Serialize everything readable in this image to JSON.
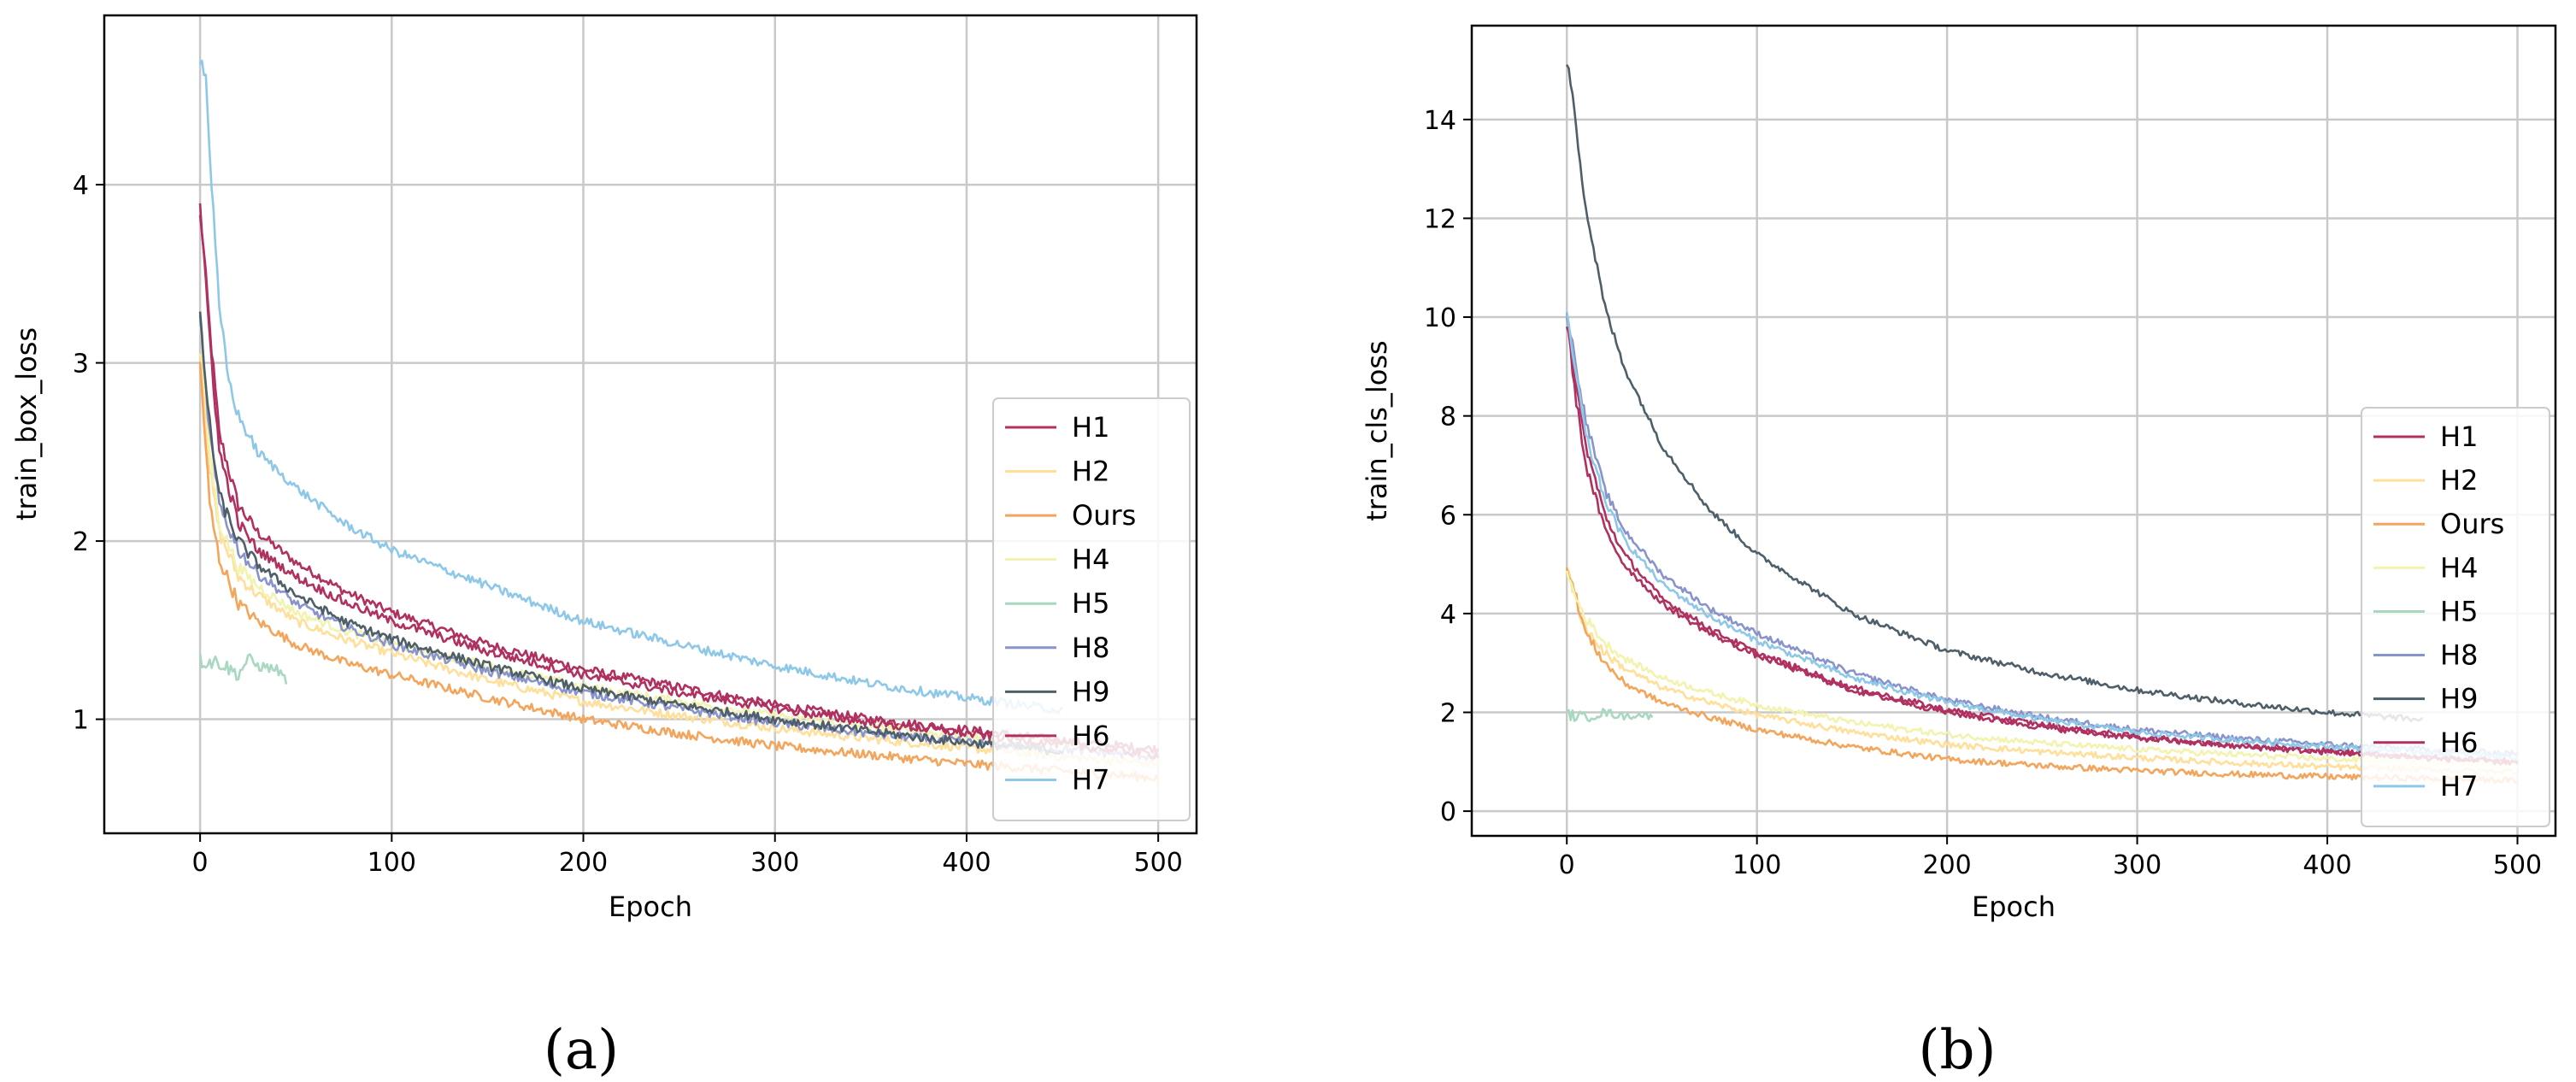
{
  "chart_data": [
    {
      "type": "line",
      "panel_label": "(a)",
      "xlabel": "Epoch",
      "ylabel": "train_box_loss",
      "xlim": [
        -50,
        520
      ],
      "ylim": [
        0.36,
        4.95
      ],
      "xticks": [
        0,
        100,
        200,
        300,
        400,
        500
      ],
      "yticks": [
        1,
        2,
        3,
        4
      ],
      "grid": true,
      "legend_position": "right",
      "series": [
        {
          "name": "H1",
          "color": "#b03060",
          "x": [
            0,
            5,
            10,
            20,
            30,
            50,
            75,
            100,
            150,
            200,
            250,
            300,
            350,
            400,
            450,
            500
          ],
          "y": [
            3.88,
            3.2,
            2.6,
            2.2,
            2.05,
            1.88,
            1.72,
            1.6,
            1.42,
            1.28,
            1.18,
            1.08,
            1.0,
            0.94,
            0.88,
            0.83
          ]
        },
        {
          "name": "H2",
          "color": "#ffdf9a",
          "x": [
            0,
            5,
            10,
            20,
            30,
            50,
            75,
            100,
            150,
            200,
            250,
            300,
            350,
            400,
            450,
            500
          ],
          "y": [
            3.1,
            2.4,
            2.05,
            1.8,
            1.7,
            1.55,
            1.45,
            1.37,
            1.22,
            1.1,
            1.02,
            0.95,
            0.89,
            0.84,
            0.79,
            0.75
          ]
        },
        {
          "name": "Ours",
          "color": "#f4a55c",
          "x": [
            0,
            5,
            10,
            20,
            30,
            50,
            75,
            100,
            150,
            200,
            250,
            300,
            350,
            400,
            450,
            500
          ],
          "y": [
            3.0,
            2.2,
            1.9,
            1.65,
            1.55,
            1.42,
            1.32,
            1.25,
            1.12,
            1.0,
            0.92,
            0.85,
            0.8,
            0.75,
            0.71,
            0.67
          ]
        },
        {
          "name": "H4",
          "color": "#f3f3b0",
          "x": [
            0,
            5,
            10,
            20,
            30,
            50,
            75,
            100,
            150,
            200,
            250,
            300,
            350,
            400,
            450,
            500
          ],
          "y": [
            3.2,
            2.5,
            2.1,
            1.85,
            1.75,
            1.6,
            1.5,
            1.42,
            1.3,
            1.18,
            1.1,
            1.02,
            0.96,
            0.9,
            0.85,
            0.8
          ]
        },
        {
          "name": "H5",
          "color": "#a8d8c0",
          "x": [
            0,
            10,
            20,
            25,
            30,
            40,
            45
          ],
          "y": [
            1.33,
            1.32,
            1.25,
            1.34,
            1.3,
            1.28,
            1.22
          ]
        },
        {
          "name": "H8",
          "color": "#8a94cc",
          "x": [
            0,
            5,
            10,
            20,
            30,
            50,
            75,
            100,
            150,
            200,
            250,
            300,
            350,
            400,
            450,
            500
          ],
          "y": [
            3.22,
            2.6,
            2.2,
            1.95,
            1.82,
            1.65,
            1.52,
            1.42,
            1.27,
            1.15,
            1.06,
            0.98,
            0.92,
            0.87,
            0.83,
            0.79
          ]
        },
        {
          "name": "H9",
          "color": "#4f5f6a",
          "x": [
            0,
            5,
            10,
            20,
            30,
            50,
            75,
            100,
            150,
            200,
            250,
            300,
            350,
            400,
            450
          ],
          "y": [
            3.24,
            2.65,
            2.25,
            2.0,
            1.87,
            1.7,
            1.55,
            1.45,
            1.3,
            1.17,
            1.08,
            1.0,
            0.93,
            0.87,
            0.82
          ]
        },
        {
          "name": "H6",
          "color": "#b03060",
          "x": [
            0,
            5,
            10,
            20,
            30,
            50,
            75,
            100,
            150,
            200,
            250,
            300,
            350,
            400,
            450,
            500
          ],
          "y": [
            3.85,
            3.15,
            2.5,
            2.1,
            1.95,
            1.8,
            1.66,
            1.55,
            1.38,
            1.25,
            1.15,
            1.06,
            0.98,
            0.92,
            0.86,
            0.8
          ]
        },
        {
          "name": "H7",
          "color": "#8ec8e8",
          "x": [
            0,
            3,
            6,
            10,
            15,
            20,
            30,
            50,
            75,
            100,
            150,
            200,
            250,
            300,
            350,
            400,
            450
          ],
          "y": [
            4.72,
            4.6,
            4.0,
            3.3,
            2.9,
            2.7,
            2.5,
            2.3,
            2.1,
            1.95,
            1.75,
            1.55,
            1.42,
            1.3,
            1.2,
            1.12,
            1.05
          ]
        }
      ]
    },
    {
      "type": "line",
      "panel_label": "(b)",
      "xlabel": "Epoch",
      "ylabel": "train_cls_loss",
      "xlim": [
        -50,
        520
      ],
      "ylim": [
        -0.5,
        15.9
      ],
      "xticks": [
        0,
        100,
        200,
        300,
        400,
        500
      ],
      "yticks": [
        0,
        2,
        4,
        6,
        8,
        10,
        12,
        14
      ],
      "grid": true,
      "legend_position": "right",
      "series": [
        {
          "name": "H1",
          "color": "#b03060",
          "x": [
            0,
            5,
            10,
            20,
            30,
            50,
            75,
            100,
            150,
            200,
            250,
            300,
            350,
            400,
            450,
            500
          ],
          "y": [
            10.0,
            8.6,
            7.4,
            6.0,
            5.2,
            4.3,
            3.7,
            3.2,
            2.5,
            2.05,
            1.75,
            1.5,
            1.35,
            1.22,
            1.1,
            1.0
          ]
        },
        {
          "name": "H2",
          "color": "#ffdf9a",
          "x": [
            0,
            5,
            10,
            20,
            30,
            50,
            75,
            100,
            150,
            200,
            250,
            300,
            350,
            400,
            450,
            500
          ],
          "y": [
            4.9,
            4.2,
            3.7,
            3.2,
            2.9,
            2.5,
            2.2,
            1.95,
            1.6,
            1.35,
            1.2,
            1.08,
            0.98,
            0.9,
            0.84,
            0.8
          ]
        },
        {
          "name": "Ours",
          "color": "#f4a55c",
          "x": [
            0,
            5,
            10,
            20,
            30,
            50,
            75,
            100,
            150,
            200,
            250,
            300,
            350,
            400,
            450,
            500
          ],
          "y": [
            5.0,
            4.3,
            3.6,
            3.0,
            2.6,
            2.2,
            1.9,
            1.65,
            1.3,
            1.05,
            0.92,
            0.82,
            0.75,
            0.7,
            0.66,
            0.62
          ]
        },
        {
          "name": "H4",
          "color": "#f3f3b0",
          "x": [
            0,
            5,
            10,
            20,
            30,
            50,
            75,
            100,
            150,
            200,
            250,
            300,
            350,
            400,
            450,
            500
          ],
          "y": [
            4.8,
            4.3,
            3.9,
            3.4,
            3.1,
            2.7,
            2.4,
            2.15,
            1.8,
            1.55,
            1.38,
            1.25,
            1.15,
            1.06,
            0.99,
            0.93
          ]
        },
        {
          "name": "H5",
          "color": "#a8d8c0",
          "x": [
            0,
            10,
            20,
            30,
            40,
            45
          ],
          "y": [
            1.95,
            1.9,
            2.0,
            1.92,
            1.95,
            1.9
          ]
        },
        {
          "name": "H8",
          "color": "#8a94cc",
          "x": [
            0,
            5,
            10,
            20,
            30,
            50,
            75,
            100,
            150,
            200,
            250,
            300,
            350,
            400,
            450,
            500
          ],
          "y": [
            10.1,
            9.0,
            7.9,
            6.5,
            5.7,
            4.8,
            4.1,
            3.6,
            2.8,
            2.25,
            1.9,
            1.65,
            1.48,
            1.35,
            1.25,
            1.16
          ]
        },
        {
          "name": "H9",
          "color": "#4f5f6a",
          "x": [
            0,
            3,
            6,
            10,
            20,
            30,
            50,
            75,
            100,
            150,
            200,
            250,
            300,
            350,
            400,
            450
          ],
          "y": [
            15.1,
            14.6,
            13.5,
            12.2,
            10.2,
            9.0,
            7.4,
            6.1,
            5.2,
            4.0,
            3.25,
            2.8,
            2.45,
            2.2,
            2.0,
            1.85
          ]
        },
        {
          "name": "H6",
          "color": "#b03060",
          "x": [
            0,
            5,
            10,
            20,
            30,
            50,
            75,
            100,
            150,
            200,
            250,
            300,
            350,
            400,
            450,
            500
          ],
          "y": [
            9.9,
            8.3,
            7.0,
            5.7,
            5.0,
            4.2,
            3.6,
            3.15,
            2.45,
            2.0,
            1.7,
            1.48,
            1.32,
            1.2,
            1.08,
            0.98
          ]
        },
        {
          "name": "H7",
          "color": "#8ec8e8",
          "x": [
            0,
            5,
            10,
            20,
            30,
            50,
            75,
            100,
            150,
            200,
            250,
            300,
            350,
            400,
            450,
            500
          ],
          "y": [
            10.0,
            8.8,
            7.6,
            6.3,
            5.5,
            4.6,
            3.95,
            3.45,
            2.7,
            2.2,
            1.85,
            1.6,
            1.44,
            1.31,
            1.2,
            1.1
          ]
        }
      ]
    }
  ]
}
